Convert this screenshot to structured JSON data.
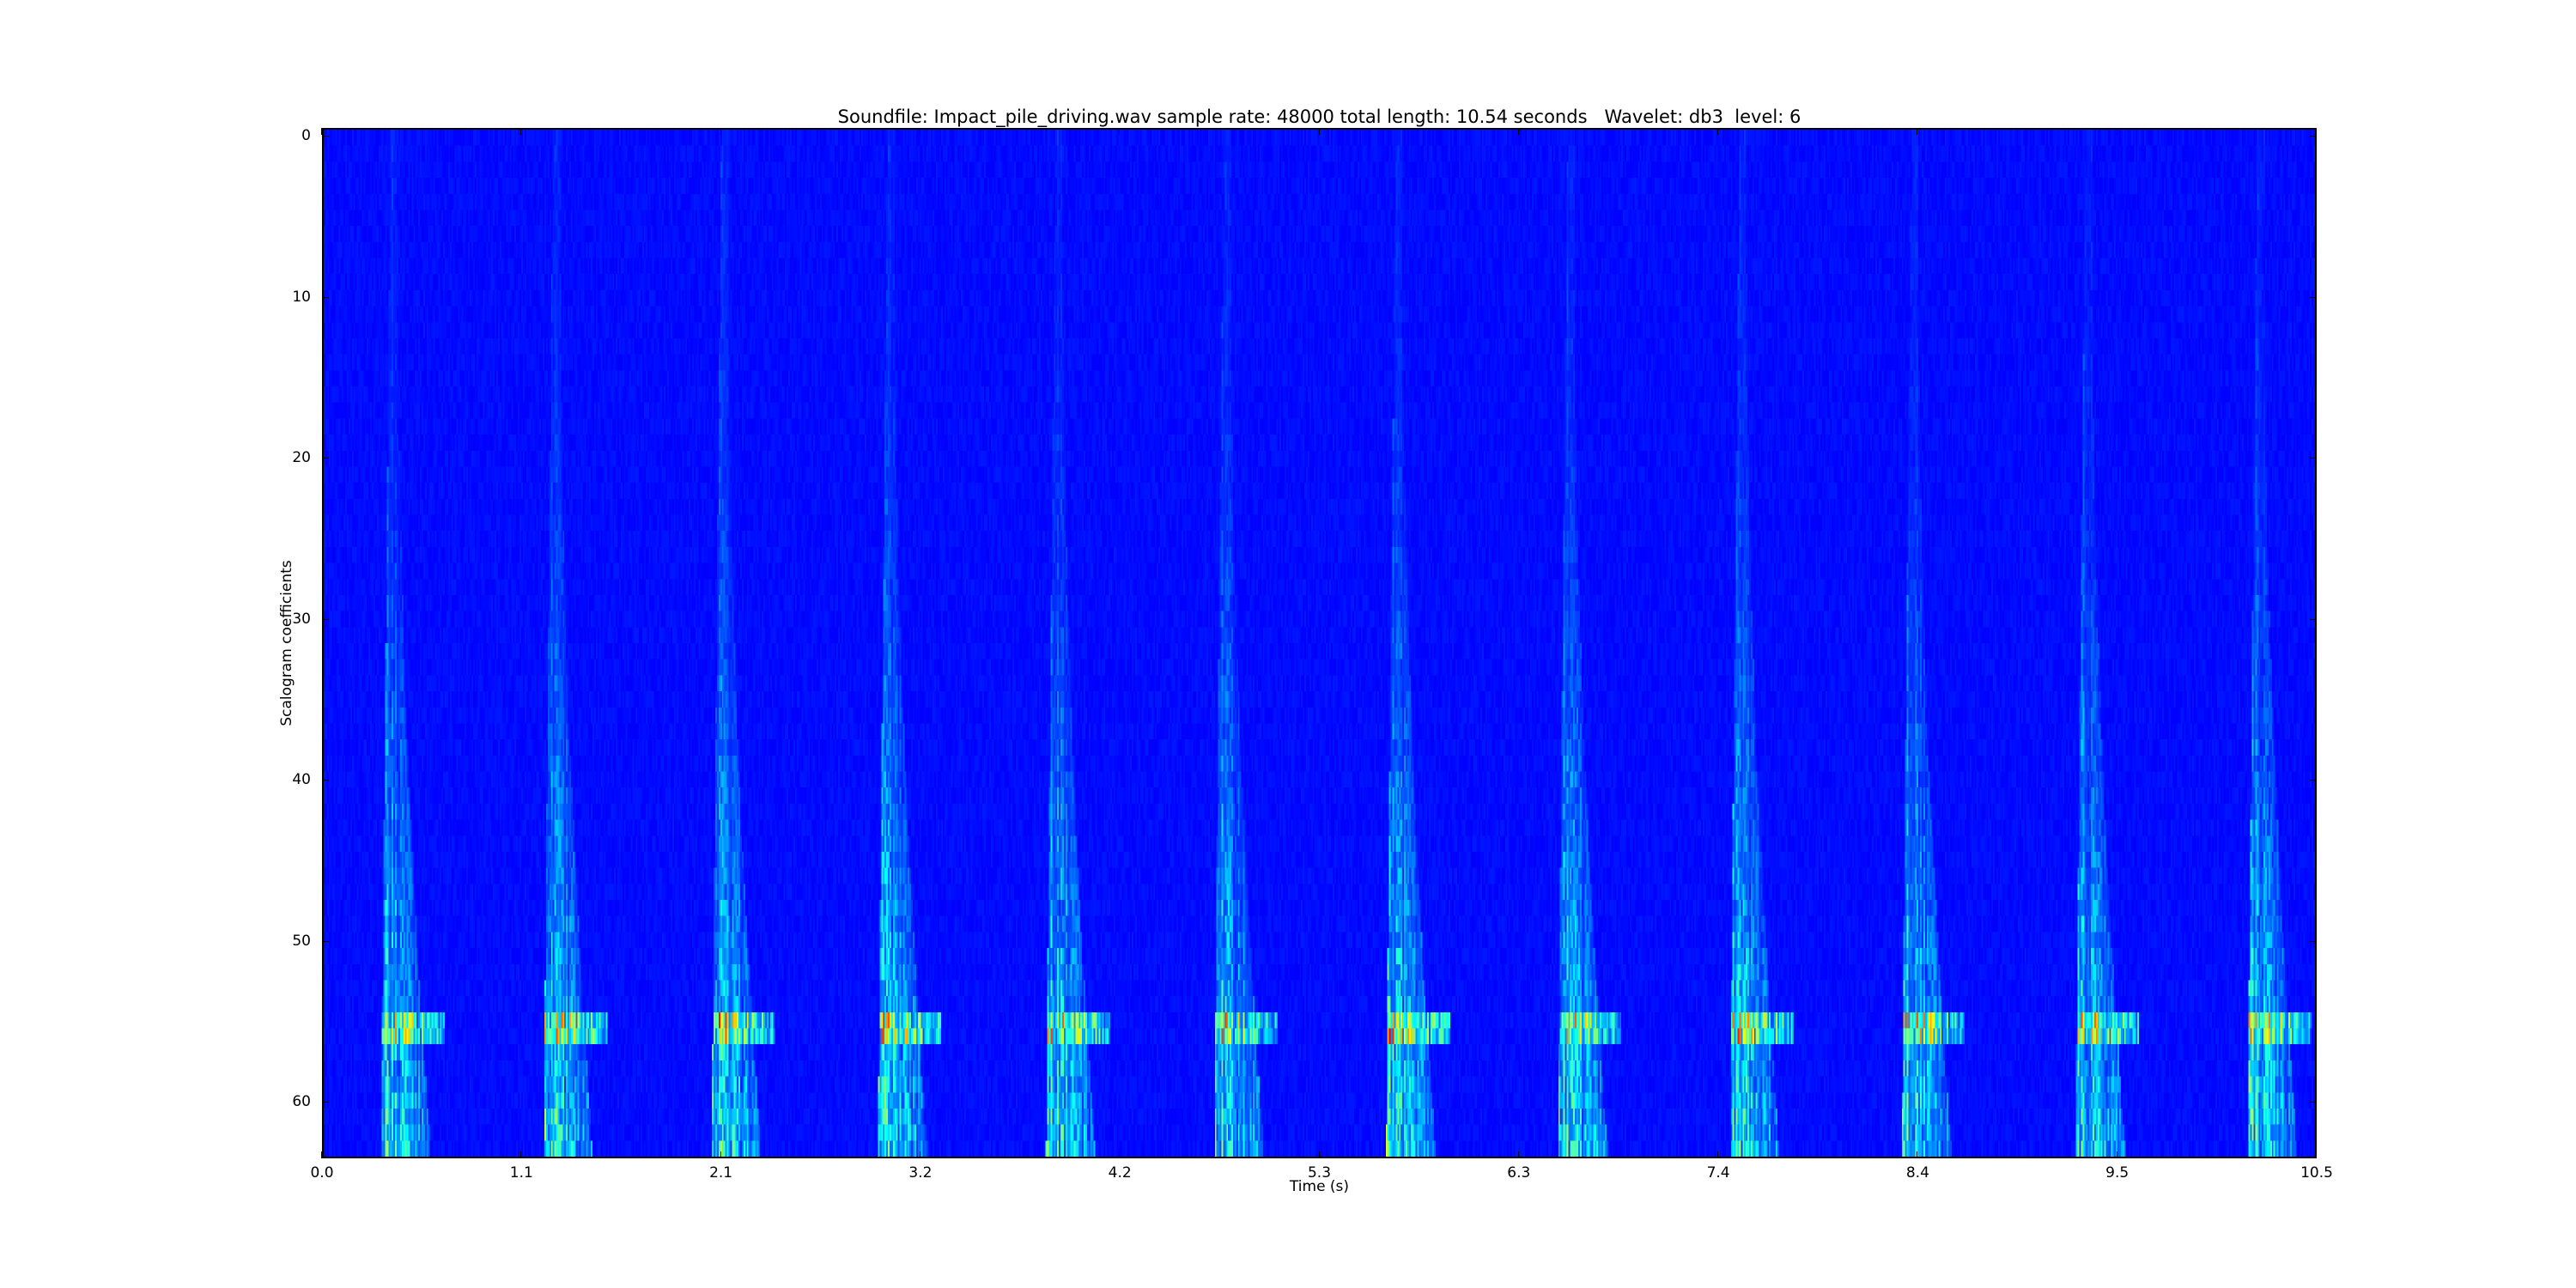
{
  "chart_data": {
    "type": "heatmap",
    "title": "Soundfile: Impact_pile_driving.wav sample rate: 48000 total length: 10.54 seconds   Wavelet: db3  level: 6",
    "xlabel": "Time (s)",
    "ylabel": "Scalogram coefficients",
    "xlim": [
      0,
      10.54
    ],
    "ylim": [
      63.5,
      -0.5
    ],
    "x_ticks": [
      "0.0",
      "1.1",
      "2.1",
      "3.2",
      "4.2",
      "5.3",
      "6.3",
      "7.4",
      "8.4",
      "9.5",
      "10.5"
    ],
    "x_tick_values": [
      0,
      1.054,
      2.108,
      3.162,
      4.216,
      5.27,
      6.324,
      7.378,
      8.432,
      9.486,
      10.54
    ],
    "y_ticks": [
      "0",
      "10",
      "20",
      "30",
      "40",
      "50",
      "60"
    ],
    "y_tick_values": [
      0,
      10,
      20,
      30,
      40,
      50,
      60
    ],
    "n_coefficients": 64,
    "colormap": "jet",
    "impact_times_s": [
      0.3,
      1.16,
      2.05,
      2.93,
      3.82,
      4.71,
      5.62,
      6.53,
      7.44,
      8.35,
      9.27,
      10.18
    ],
    "peak_band_coefficients": [
      55,
      56
    ],
    "grid": false,
    "legend": "none"
  }
}
